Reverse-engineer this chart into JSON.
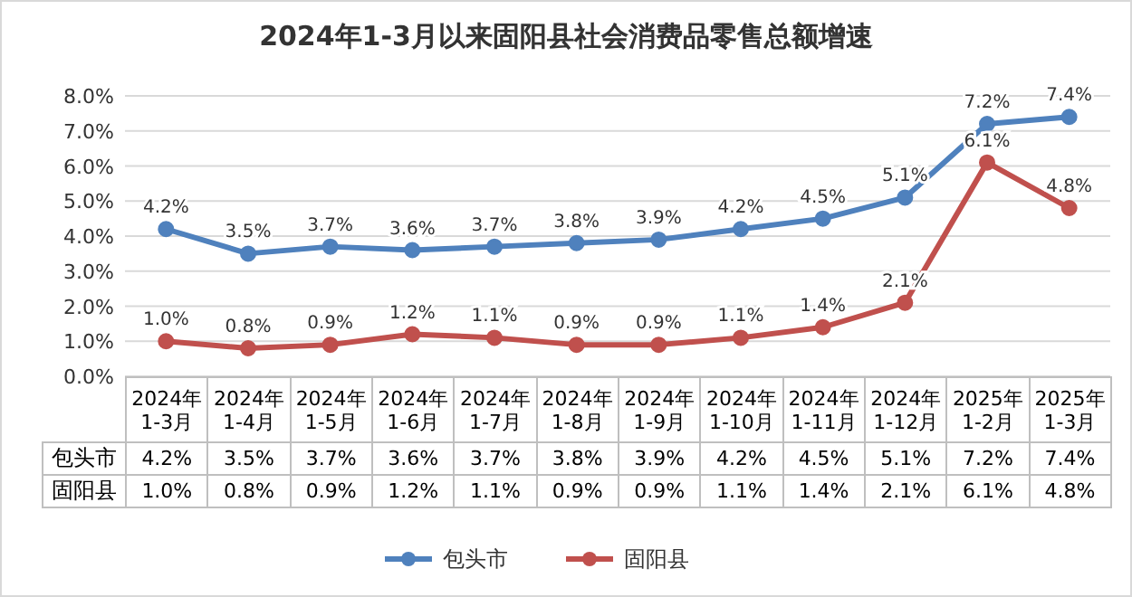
{
  "chart_data": {
    "type": "line",
    "title": "2024年1-3月以来固阳县社会消费品零售总额增速",
    "categories": [
      "2024年1-3月",
      "2024年1-4月",
      "2024年1-5月",
      "2024年1-6月",
      "2024年1-7月",
      "2024年1-8月",
      "2024年1-9月",
      "2024年1-10月",
      "2024年1-11月",
      "2024年1-12月",
      "2025年1-2月",
      "2025年1-3月"
    ],
    "series": [
      {
        "name": "包头市",
        "color": "#4f81bd",
        "values": [
          4.2,
          3.5,
          3.7,
          3.6,
          3.7,
          3.8,
          3.9,
          4.2,
          4.5,
          5.1,
          7.2,
          7.4
        ],
        "value_labels": [
          "4.2%",
          "3.5%",
          "3.7%",
          "3.6%",
          "3.7%",
          "3.8%",
          "3.9%",
          "4.2%",
          "4.5%",
          "5.1%",
          "7.2%",
          "7.4%"
        ]
      },
      {
        "name": "固阳县",
        "color": "#c0504d",
        "values": [
          1.0,
          0.8,
          0.9,
          1.2,
          1.1,
          0.9,
          0.9,
          1.1,
          1.4,
          2.1,
          6.1,
          4.8
        ],
        "value_labels": [
          "1.0%",
          "0.8%",
          "0.9%",
          "1.2%",
          "1.1%",
          "0.9%",
          "0.9%",
          "1.1%",
          "1.4%",
          "2.1%",
          "6.1%",
          "4.8%"
        ]
      }
    ],
    "ylim": [
      0,
      8
    ],
    "yticks": [
      {
        "value": 0,
        "label": "0.0%"
      },
      {
        "value": 1,
        "label": "1.0%"
      },
      {
        "value": 2,
        "label": "2.0%"
      },
      {
        "value": 3,
        "label": "3.0%"
      },
      {
        "value": 4,
        "label": "4.0%"
      },
      {
        "value": 5,
        "label": "5.0%"
      },
      {
        "value": 6,
        "label": "6.0%"
      },
      {
        "value": 7,
        "label": "7.0%"
      },
      {
        "value": 8,
        "label": "8.0%"
      }
    ],
    "grid": "y",
    "legend": "bottom",
    "marker": "circle",
    "line_style": "solid"
  }
}
